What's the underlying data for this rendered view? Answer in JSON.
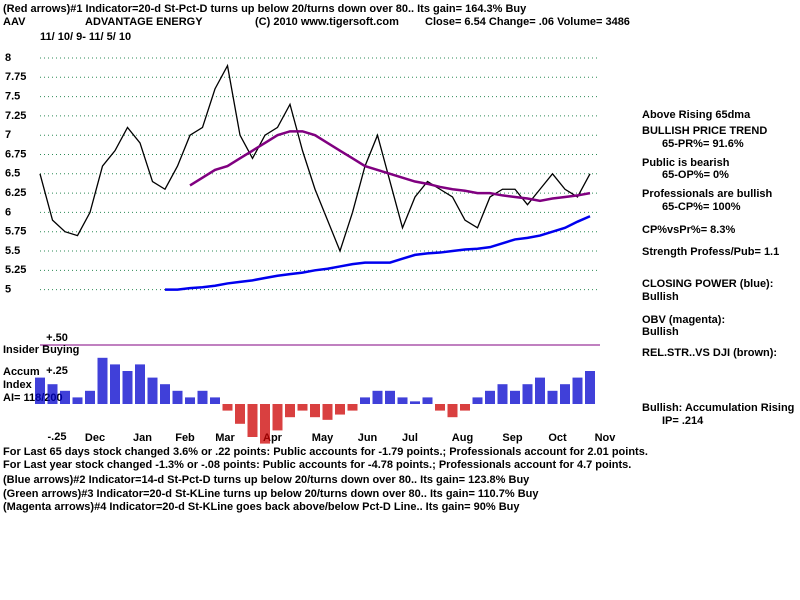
{
  "header": {
    "line1": "(Red arrows)#1 Indicator=20-d St-Pct-D  turns up below 20/turns down over 80.. Its gain= 164.3% Buy",
    "symbol": "AAV",
    "company": "ADVANTAGE ENERGY",
    "copyright": "(C) 2010 www.tigersoft.com",
    "quote": "Close=  6.54  Change= .06 Volume= 3486",
    "dates": "11/ 10/ 9- 11/ 5/ 10"
  },
  "side": [
    "Above Rising 65dma",
    "BULLISH PRICE TREND",
    "65-PR%= 91.6%",
    "Public is bearish",
    "65-OP%= 0%",
    "Professionals are bullish",
    "65-CP%= 100%",
    "CP%vsPr%=  8.3%",
    "Strength Profess/Pub= 1.1",
    "CLOSING POWER (blue):",
    "Bullish",
    "OBV (magenta):",
    "Bullish",
    "REL.STR..VS DJI (brown):",
    "Bullish: Accumulation Rising",
    "IP=  .214"
  ],
  "footer": [
    "For Last 65 days stock changed  3.6% or  .22 points:  Public accounts for -1.79 points.;  Professionals account for  2.01 points.",
    "For Last year stock changed -1.3% or -.08 points:  Public accounts for -4.78 points.;  Professionals account for  4.7 points.",
    "(Blue arrows)#2 Indicator=14-d St-Pct-D  turns up below 20/turns down over 80.. Its gain= 123.8% Buy",
    "(Green arrows)#3 Indicator=20-d St-KLine turns up below 20/turns down over 80.. Its gain= 110.7% Buy",
    "(Magenta arrows)#4 Indicator=20-d St-KLine goes back above/below Pct-D Line.. Its gain= 90% Buy"
  ],
  "accum_labels": {
    "insider": "Insider Buying",
    "accum": "Accum",
    "index": "Index",
    "ai": "AI= 118/200"
  },
  "chart_data": [
    {
      "type": "line",
      "xlim": [
        0,
        46
      ],
      "ylim": [
        4.85,
        8.15
      ],
      "grid": true,
      "yticks": [
        5,
        5.25,
        5.5,
        5.75,
        6,
        6.25,
        6.5,
        6.75,
        7,
        7.25,
        7.5,
        7.75,
        8
      ],
      "xticks": [
        {
          "value": 4.4,
          "label": "Dec"
        },
        {
          "value": 8.2,
          "label": "Jan"
        },
        {
          "value": 11.6,
          "label": "Feb"
        },
        {
          "value": 14.8,
          "label": "Mar"
        },
        {
          "value": 18.6,
          "label": "Apr"
        },
        {
          "value": 22.6,
          "label": "May"
        },
        {
          "value": 26.2,
          "label": "Jun"
        },
        {
          "value": 29.6,
          "label": "Jul"
        },
        {
          "value": 33.8,
          "label": "Aug"
        },
        {
          "value": 37.8,
          "label": "Sep"
        },
        {
          "value": 41.4,
          "label": "Oct"
        },
        {
          "value": 45.2,
          "label": "Nov"
        }
      ],
      "x": [
        0,
        1,
        2,
        3,
        4,
        5,
        6,
        7,
        8,
        9,
        10,
        11,
        12,
        13,
        14,
        15,
        16,
        17,
        18,
        19,
        20,
        21,
        22,
        23,
        24,
        25,
        26,
        27,
        28,
        29,
        30,
        31,
        32,
        33,
        34,
        35,
        36,
        37,
        38,
        39,
        40,
        41,
        42,
        43,
        44
      ],
      "series": [
        {
          "name": "Close",
          "color": "#000000",
          "values": [
            6.5,
            5.9,
            5.75,
            5.7,
            6.0,
            6.6,
            6.8,
            7.1,
            6.9,
            6.4,
            6.3,
            6.6,
            7.0,
            7.1,
            7.6,
            7.9,
            7.0,
            6.7,
            7.0,
            7.1,
            7.4,
            6.8,
            6.3,
            5.9,
            5.5,
            6.0,
            6.6,
            7.0,
            6.4,
            5.8,
            6.2,
            6.4,
            6.3,
            6.2,
            5.9,
            5.8,
            6.2,
            6.3,
            6.3,
            6.1,
            6.3,
            6.5,
            6.3,
            6.2,
            6.5
          ]
        },
        {
          "name": "65dma",
          "color": "#800080",
          "values": [
            null,
            null,
            null,
            null,
            null,
            null,
            null,
            null,
            null,
            null,
            null,
            null,
            6.35,
            6.45,
            6.55,
            6.6,
            6.7,
            6.8,
            6.9,
            7.0,
            7.05,
            7.05,
            7.0,
            6.9,
            6.8,
            6.7,
            6.6,
            6.55,
            6.5,
            6.45,
            6.4,
            6.37,
            6.33,
            6.3,
            6.28,
            6.25,
            6.25,
            6.22,
            6.2,
            6.18,
            6.15,
            6.18,
            6.2,
            6.22,
            6.25
          ]
        },
        {
          "name": "Closing Power",
          "color": "#0000ee",
          "values": [
            null,
            null,
            null,
            null,
            null,
            null,
            null,
            null,
            null,
            null,
            5.0,
            5.0,
            5.02,
            5.03,
            5.05,
            5.08,
            5.1,
            5.12,
            5.15,
            5.18,
            5.2,
            5.22,
            5.25,
            5.27,
            5.3,
            5.33,
            5.35,
            5.35,
            5.35,
            5.4,
            5.45,
            5.47,
            5.48,
            5.5,
            5.52,
            5.53,
            5.55,
            5.6,
            5.65,
            5.67,
            5.7,
            5.75,
            5.8,
            5.88,
            5.95
          ]
        }
      ]
    },
    {
      "type": "bar",
      "xlim": [
        0,
        46
      ],
      "ylim": [
        -0.3,
        0.55
      ],
      "yticks": [
        {
          "value": 0.5,
          "label": "+.50"
        },
        {
          "value": 0.25,
          "label": "+.25"
        },
        {
          "value": -0.25,
          "label": "-.25"
        }
      ],
      "pos_color": "#0000cc",
      "neg_color": "#cc0000",
      "values": [
        0.2,
        0.15,
        0.1,
        0.05,
        0.1,
        0.35,
        0.3,
        0.25,
        0.3,
        0.2,
        0.15,
        0.1,
        0.05,
        0.1,
        0.05,
        -0.05,
        -0.15,
        -0.25,
        -0.3,
        -0.2,
        -0.1,
        -0.05,
        -0.1,
        -0.12,
        -0.08,
        -0.05,
        0.05,
        0.1,
        0.1,
        0.05,
        0.02,
        0.05,
        -0.05,
        -0.1,
        -0.05,
        0.05,
        0.1,
        0.15,
        0.1,
        0.15,
        0.2,
        0.1,
        0.15,
        0.2,
        0.25
      ]
    }
  ]
}
